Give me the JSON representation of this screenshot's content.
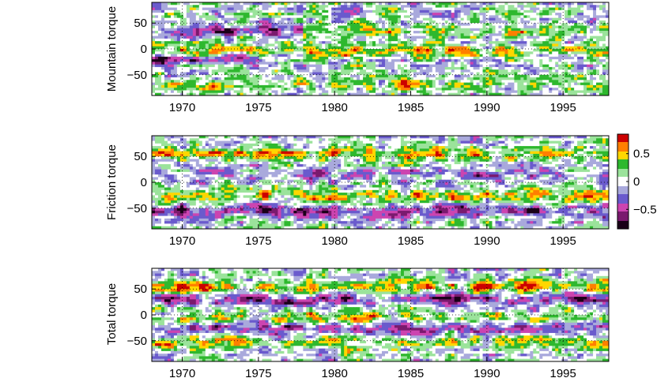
{
  "colors": {
    "palette": [
      "#1a0018",
      "#7a1a6e",
      "#cc44b0",
      "#6a5acd",
      "#a9a9dc",
      "#ffffff",
      "#9be39b",
      "#2eb82e",
      "#ffd700",
      "#ff7f00",
      "#cc0000"
    ]
  },
  "chart_data": [
    {
      "type": "heatmap",
      "ylabel": "Mountain torque",
      "xlim": [
        1968,
        1998
      ],
      "ylim": [
        -90,
        90
      ],
      "xticks": [
        1970,
        1975,
        1980,
        1985,
        1990,
        1995
      ],
      "yticks": [
        50,
        0,
        -50
      ],
      "grid": true,
      "bands": [
        {
          "lat": 35,
          "amp": -0.6,
          "until": 1978
        },
        {
          "lat": 35,
          "amp": 0.4,
          "from": 1978
        },
        {
          "lat": -20,
          "amp": -0.7,
          "until": 1975
        },
        {
          "lat": -5,
          "amp": 0.5
        },
        {
          "lat": -70,
          "amp": 0.4
        }
      ]
    },
    {
      "type": "heatmap",
      "ylabel": "Friction torque",
      "xlim": [
        1968,
        1998
      ],
      "ylim": [
        -90,
        90
      ],
      "xticks": [
        1970,
        1975,
        1980,
        1985,
        1990,
        1995
      ],
      "yticks": [
        50,
        0,
        -50
      ],
      "grid": true,
      "bands": [
        {
          "lat": 55,
          "amp": 0.6
        },
        {
          "lat": 15,
          "amp": -0.4
        },
        {
          "lat": -25,
          "amp": 0.5
        },
        {
          "lat": -55,
          "amp": -0.7
        }
      ]
    },
    {
      "type": "heatmap",
      "ylabel": "Total torque",
      "xlim": [
        1968,
        1998
      ],
      "ylim": [
        -90,
        90
      ],
      "xticks": [
        1970,
        1975,
        1980,
        1985,
        1990,
        1995
      ],
      "yticks": [
        50,
        0,
        -50
      ],
      "grid": true,
      "bands": [
        {
          "lat": 55,
          "amp": 0.6
        },
        {
          "lat": 30,
          "amp": -0.7
        },
        {
          "lat": -5,
          "amp": 0.5
        },
        {
          "lat": -25,
          "amp": -0.6
        },
        {
          "lat": -55,
          "amp": 0.5
        }
      ]
    }
  ],
  "colorbar": {
    "ticks": [
      {
        "value": 0.5,
        "label": "0.5"
      },
      {
        "value": 0,
        "label": "0"
      },
      {
        "value": -0.5,
        "label": "−0.5"
      }
    ],
    "range": [
      -0.85,
      0.85
    ]
  }
}
